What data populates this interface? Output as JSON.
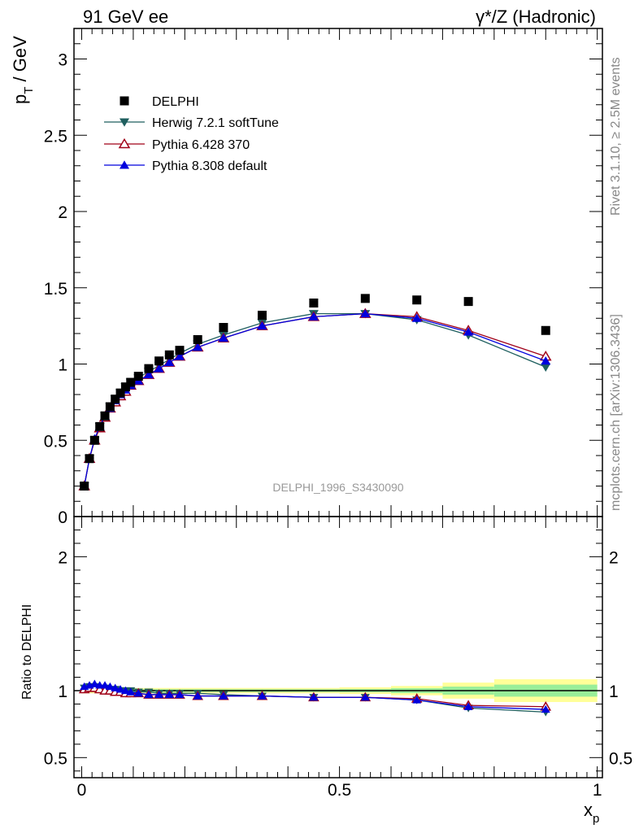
{
  "header": {
    "left": "91 GeV ee",
    "right": "γ*/Z (Hadronic)"
  },
  "side_text": {
    "rivet": "Rivet 3.1.10, ≥ 2.5M events",
    "mcplots": "mcplots.cern.ch [arXiv:1306.3436]"
  },
  "analysis_ref": "DELPHI_1996_S3430090",
  "colors": {
    "data": "#000000",
    "herwig": "#1f5f5f",
    "pythia6": "#a00018",
    "pythia8": "#0000dd",
    "band_yellow": "#ffff99",
    "band_green": "#99ee99"
  },
  "chart_data": [
    {
      "type": "scatter",
      "panel": "main",
      "ylabel_main": "p",
      "ylabel_sub": "T",
      "ylabel_unit": " / GeV",
      "xlim": [
        -0.015,
        1.01
      ],
      "ylim": [
        0,
        3.2
      ],
      "yticks": [
        0,
        0.5,
        1,
        1.5,
        2,
        2.5,
        3
      ],
      "ytick_labels": [
        "0",
        "0.5",
        "1",
        "1.5",
        "2",
        "2.5",
        "3"
      ],
      "legend_position": "top-left",
      "x": [
        0.005,
        0.015,
        0.025,
        0.035,
        0.045,
        0.055,
        0.065,
        0.075,
        0.085,
        0.095,
        0.11,
        0.13,
        0.15,
        0.17,
        0.19,
        0.225,
        0.275,
        0.35,
        0.45,
        0.55,
        0.65,
        0.75,
        0.9
      ],
      "series": [
        {
          "name": "DELPHI",
          "marker": "square",
          "color_key": "data",
          "values": [
            0.2,
            0.38,
            0.5,
            0.59,
            0.66,
            0.72,
            0.77,
            0.81,
            0.85,
            0.88,
            0.92,
            0.97,
            1.02,
            1.06,
            1.09,
            1.16,
            1.24,
            1.32,
            1.4,
            1.43,
            1.42,
            1.41,
            1.22
          ]
        },
        {
          "name": "Herwig 7.2.1 softTune",
          "marker": "triangle-down",
          "color_key": "herwig",
          "values": [
            0.2,
            0.38,
            0.5,
            0.59,
            0.66,
            0.72,
            0.77,
            0.81,
            0.85,
            0.88,
            0.91,
            0.95,
            0.99,
            1.03,
            1.07,
            1.13,
            1.19,
            1.27,
            1.33,
            1.33,
            1.29,
            1.19,
            0.98
          ]
        },
        {
          "name": "Pythia 6.428 370",
          "marker": "triangle-up-open",
          "color_key": "pythia6",
          "values": [
            0.2,
            0.38,
            0.5,
            0.58,
            0.65,
            0.71,
            0.75,
            0.79,
            0.82,
            0.86,
            0.89,
            0.93,
            0.97,
            1.01,
            1.05,
            1.11,
            1.17,
            1.25,
            1.31,
            1.33,
            1.31,
            1.22,
            1.05
          ]
        },
        {
          "name": "Pythia 8.308 default",
          "marker": "triangle-up",
          "color_key": "pythia8",
          "values": [
            0.2,
            0.38,
            0.51,
            0.59,
            0.66,
            0.71,
            0.76,
            0.8,
            0.83,
            0.86,
            0.89,
            0.93,
            0.97,
            1.01,
            1.05,
            1.11,
            1.17,
            1.25,
            1.31,
            1.33,
            1.3,
            1.21,
            1.02
          ]
        }
      ]
    },
    {
      "type": "line",
      "panel": "ratio",
      "ylabel": "Ratio to DELPHI",
      "xlabel_main": "x",
      "xlabel_sub": "p",
      "xlim": [
        -0.015,
        1.01
      ],
      "ylim": [
        0.35,
        2.3
      ],
      "yticks": [
        0.5,
        1,
        2
      ],
      "ytick_labels": [
        "0.5",
        "1",
        "2"
      ],
      "xticks": [
        0,
        0.5,
        1
      ],
      "xtick_labels": [
        "0",
        "0.5",
        "1"
      ],
      "reference_line": 1,
      "x": [
        0.005,
        0.015,
        0.025,
        0.035,
        0.045,
        0.055,
        0.065,
        0.075,
        0.085,
        0.095,
        0.11,
        0.13,
        0.15,
        0.17,
        0.19,
        0.225,
        0.275,
        0.35,
        0.45,
        0.55,
        0.65,
        0.75,
        0.9
      ],
      "uncertainty_band": {
        "x_edges": [
          0,
          0.5,
          0.6,
          0.7,
          0.8,
          1.0
        ],
        "yellow_halfwidth": [
          0.02,
          0.025,
          0.035,
          0.06,
          0.085
        ],
        "green_halfwidth": [
          0.01,
          0.012,
          0.018,
          0.03,
          0.045
        ]
      },
      "series": [
        {
          "name": "Herwig 7.2.1 softTune",
          "marker": "triangle-down",
          "color_key": "herwig",
          "values": [
            1.02,
            1.03,
            1.03,
            1.02,
            1.02,
            1.01,
            1.01,
            1.0,
            1.0,
            1.0,
            0.99,
            0.99,
            0.98,
            0.98,
            0.98,
            0.98,
            0.97,
            0.96,
            0.95,
            0.95,
            0.93,
            0.87,
            0.84
          ]
        },
        {
          "name": "Pythia 6.428 370",
          "marker": "triangle-up-open",
          "color_key": "pythia6",
          "values": [
            1.01,
            1.02,
            1.02,
            1.01,
            1.0,
            1.0,
            0.99,
            0.99,
            0.98,
            0.98,
            0.98,
            0.97,
            0.97,
            0.97,
            0.97,
            0.96,
            0.96,
            0.96,
            0.95,
            0.95,
            0.94,
            0.89,
            0.88
          ]
        },
        {
          "name": "Pythia 8.308 default",
          "marker": "triangle-up",
          "color_key": "pythia8",
          "values": [
            1.03,
            1.04,
            1.05,
            1.04,
            1.04,
            1.03,
            1.02,
            1.01,
            1.0,
            0.99,
            0.98,
            0.97,
            0.97,
            0.97,
            0.97,
            0.96,
            0.96,
            0.96,
            0.95,
            0.95,
            0.93,
            0.88,
            0.86
          ]
        }
      ]
    }
  ]
}
